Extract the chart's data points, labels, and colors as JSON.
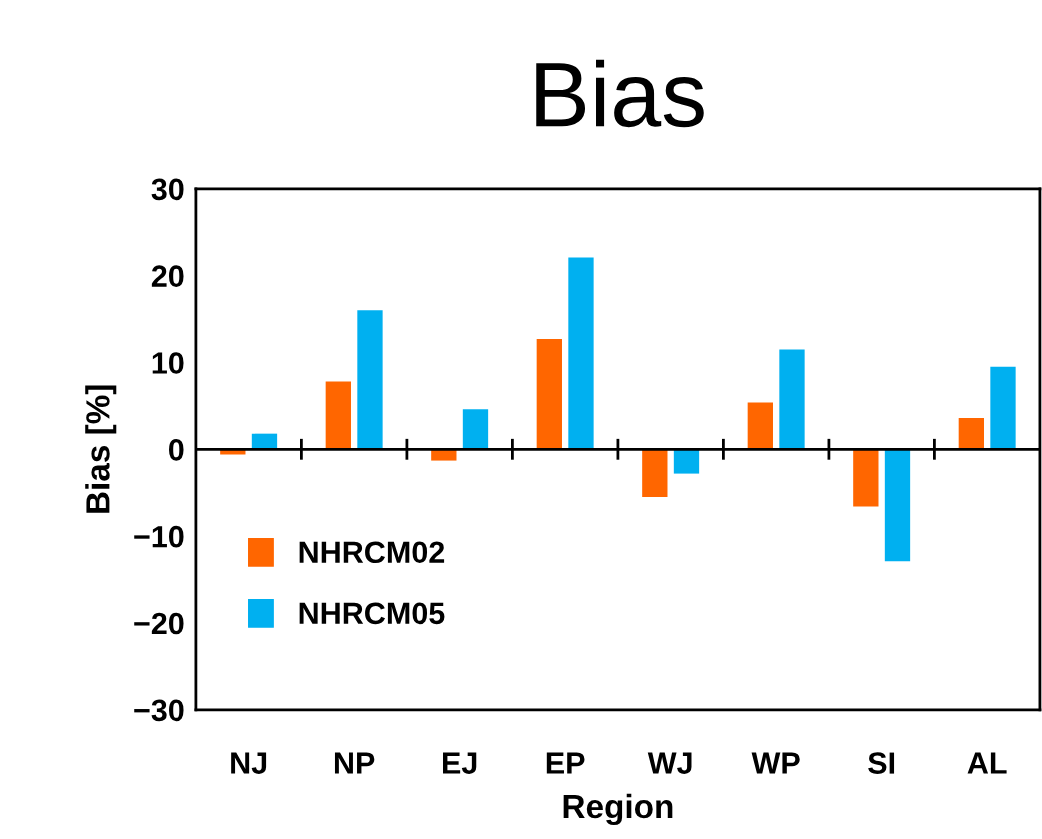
{
  "chart_data": {
    "type": "bar",
    "title": "Bias",
    "xlabel": "Region",
    "ylabel": "Bias [%]",
    "categories": [
      "NJ",
      "NP",
      "EJ",
      "EP",
      "WJ",
      "WP",
      "SI",
      "AL"
    ],
    "series": [
      {
        "name": "NHRCM02",
        "color": "#ff6600",
        "values": [
          -0.6,
          7.8,
          -1.3,
          12.7,
          -5.5,
          5.4,
          -6.6,
          3.6
        ]
      },
      {
        "name": "NHRCM05",
        "color": "#00b0f0",
        "values": [
          1.8,
          16.0,
          4.6,
          22.1,
          -2.8,
          11.5,
          -12.9,
          9.5
        ]
      }
    ],
    "ylim": [
      -30,
      30
    ],
    "yticks": [
      {
        "value": -30,
        "label": "−30"
      },
      {
        "value": -20,
        "label": "−20"
      },
      {
        "value": -10,
        "label": "−10"
      },
      0,
      10,
      20,
      30
    ],
    "ref_lines": [
      {
        "axis": "y",
        "value": 0,
        "color": "#000000"
      }
    ],
    "grid": false,
    "legend": "bottom left"
  }
}
